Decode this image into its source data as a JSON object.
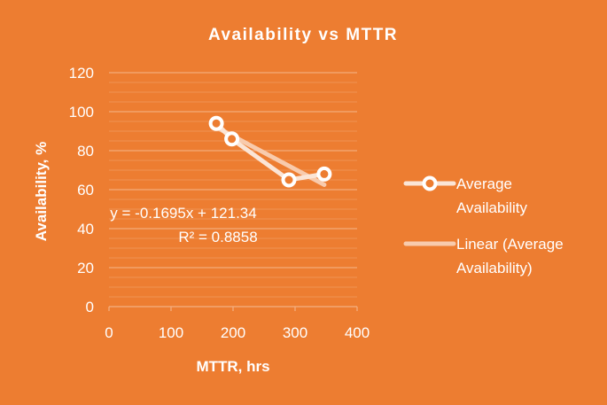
{
  "chart_data": {
    "type": "scatter",
    "title": "Availability vs MTTR",
    "xlabel": "MTTR, hrs",
    "ylabel": "Availability, %",
    "xlim": [
      0,
      400
    ],
    "ylim": [
      0,
      120
    ],
    "x_ticks": [
      "0",
      "100",
      "200",
      "300",
      "400"
    ],
    "y_ticks": [
      "0",
      "20",
      "40",
      "60",
      "80",
      "100",
      "120"
    ],
    "grid": true,
    "legend_position": "right",
    "series": [
      {
        "name": "Average Availability",
        "points": [
          {
            "x": 173,
            "y": 94
          },
          {
            "x": 198,
            "y": 86
          },
          {
            "x": 290,
            "y": 65
          },
          {
            "x": 347,
            "y": 68
          }
        ]
      }
    ],
    "trendline": {
      "name": "Linear (Average Availability)",
      "slope": -0.1695,
      "intercept": 121.34,
      "x_range": [
        173,
        347
      ],
      "equation": "y = -0.1695x + 121.34",
      "r_squared": "R² = 0.8858"
    },
    "legend": {
      "series_lines": [
        "Average",
        "Availability"
      ],
      "trend_lines": [
        "Linear (Average",
        "Availability)"
      ]
    },
    "colors": {
      "background": "#ED7D31",
      "text": "#FFFFFF",
      "marker": "#FFFFFF",
      "series_line": "#FBE5D6",
      "trendline": "#F8CBAD",
      "gridline": "#F4B183"
    }
  }
}
